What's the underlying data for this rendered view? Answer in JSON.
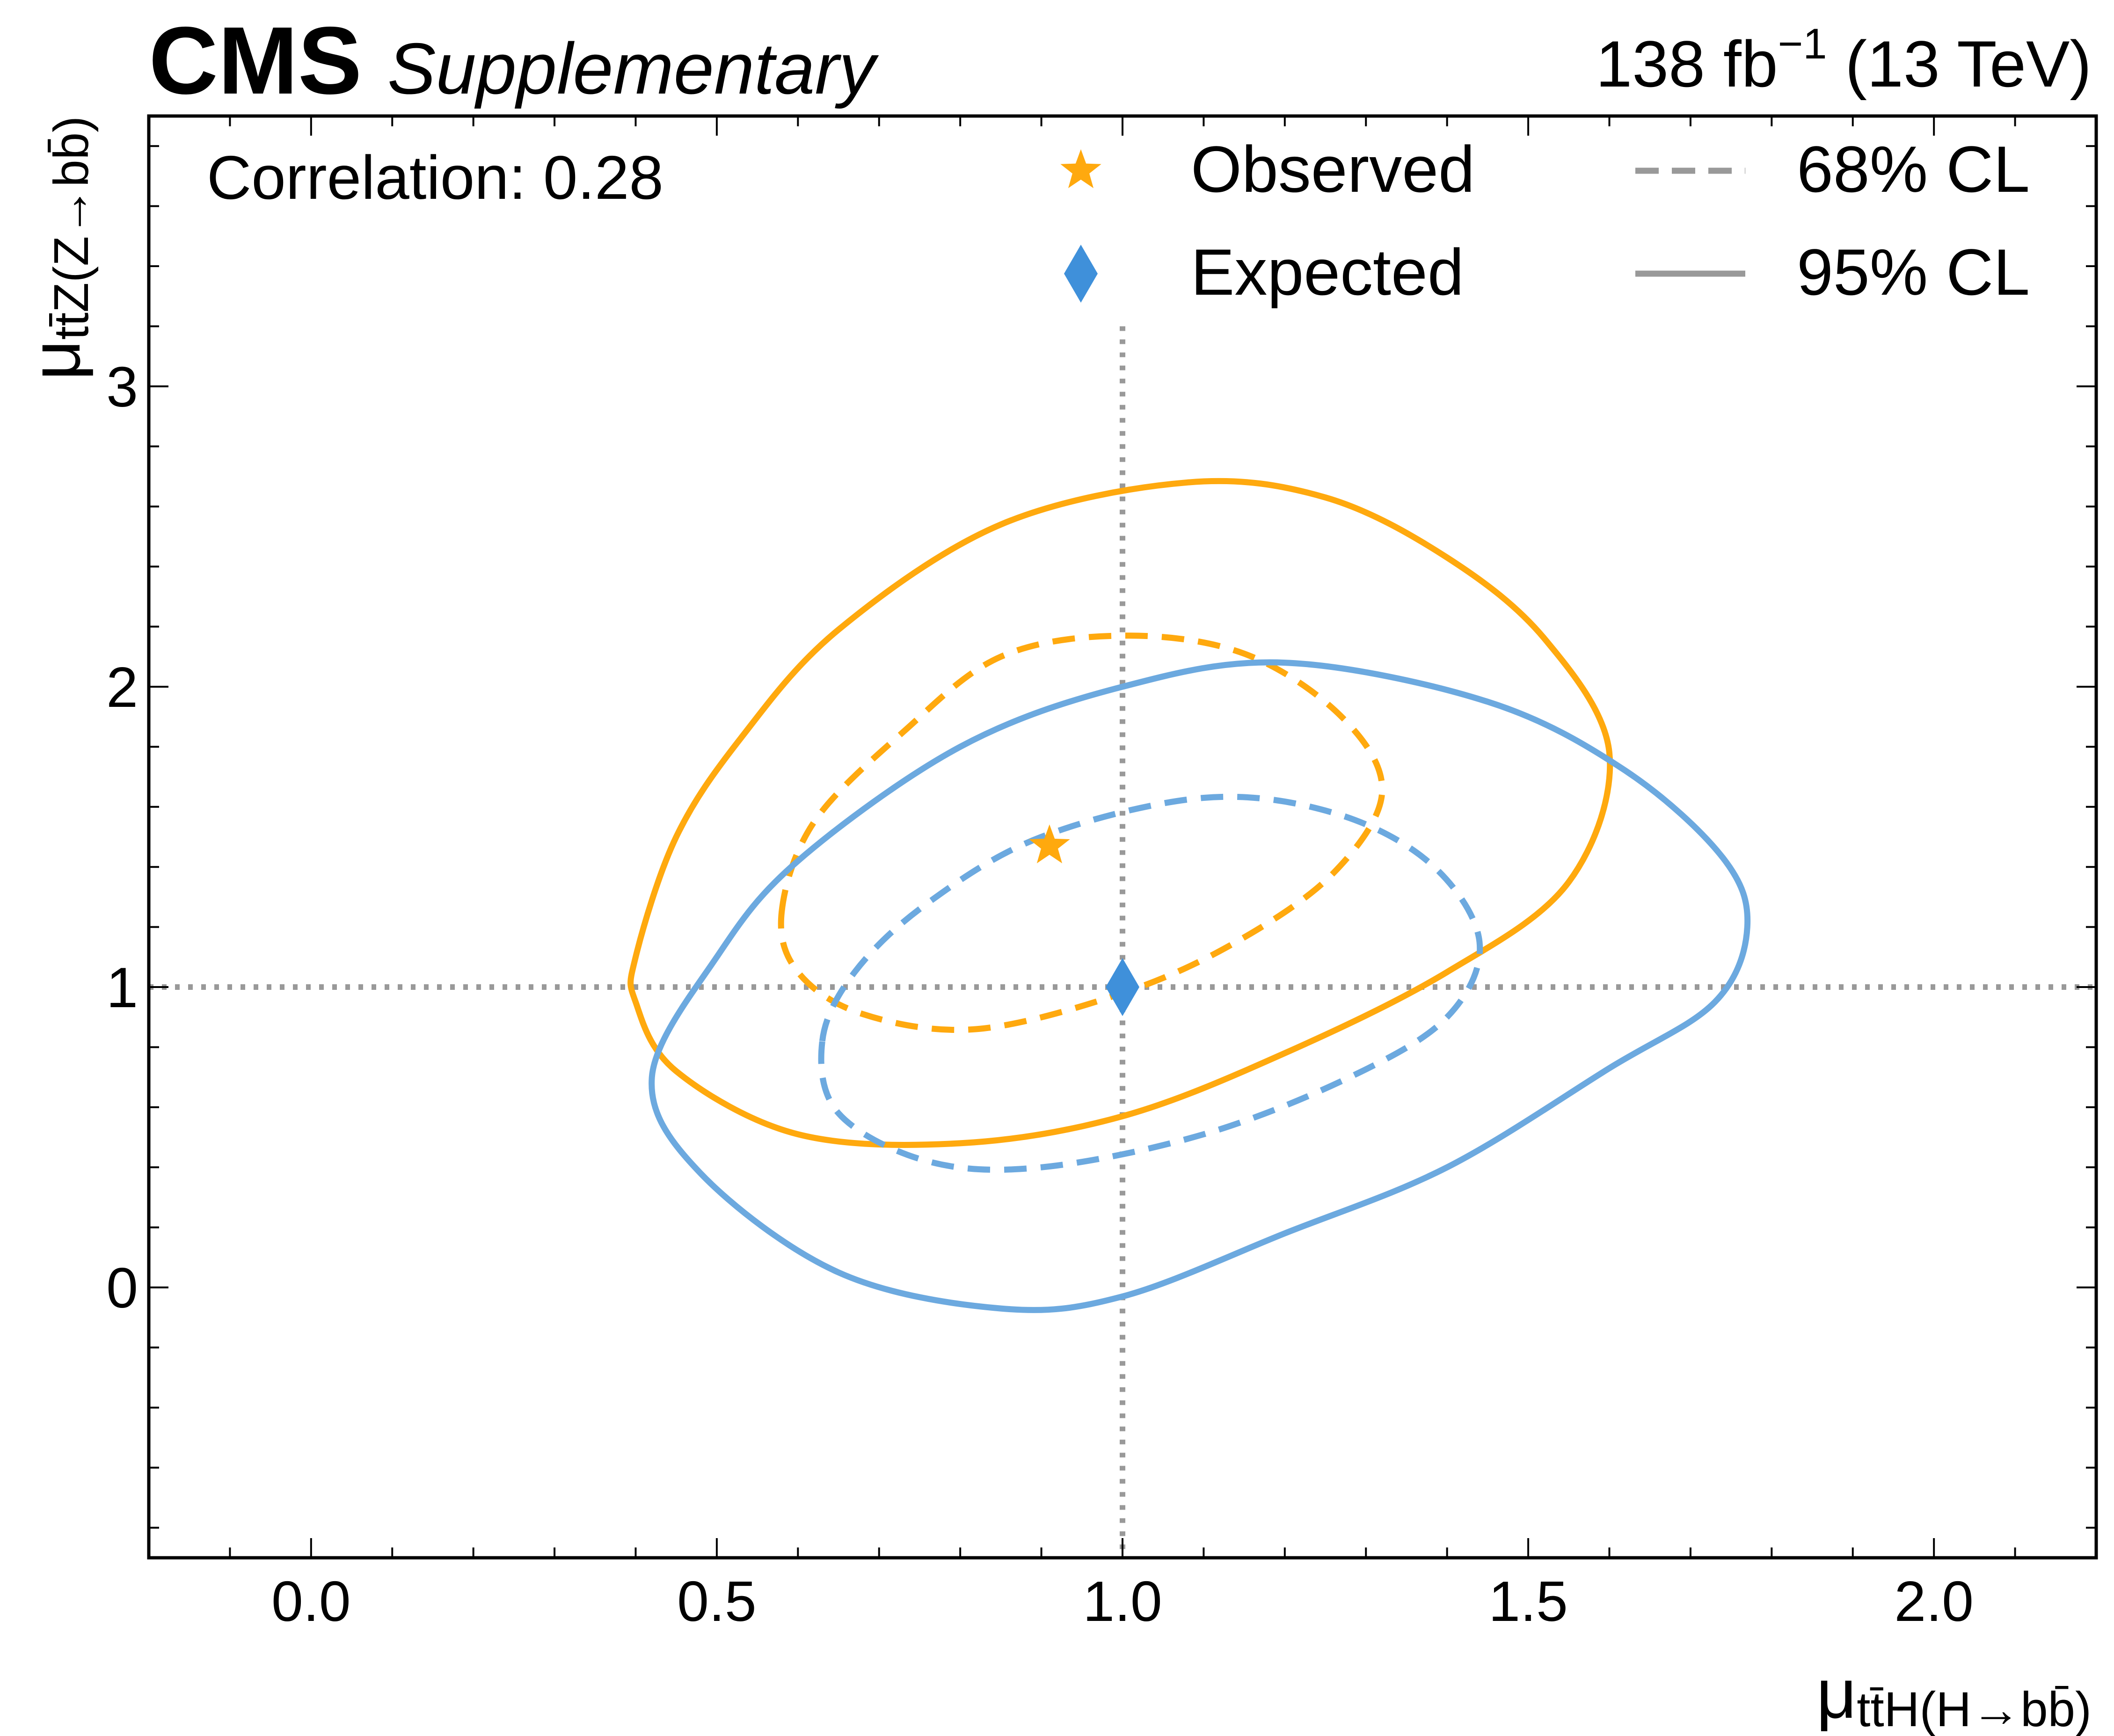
{
  "header": {
    "experiment": "CMS",
    "label": "Supplementary",
    "lumi": "138 fb",
    "lumi_exp": "−1",
    "energy": " (13 TeV)"
  },
  "annotation": "Correlation: 0.28",
  "chart_data": {
    "type": "contour",
    "xlabel": {
      "mu": "μ",
      "sub": "tt̄H(H→bb̄)"
    },
    "ylabel": {
      "mu": "μ",
      "sub": "tt̄Z(Z→bb̄)"
    },
    "xlim": [
      -0.2,
      2.2
    ],
    "ylim": [
      -0.9,
      3.9
    ],
    "xticks": [
      0.0,
      0.5,
      1.0,
      1.5,
      2.0
    ],
    "xtick_labels": [
      "0.0",
      "0.5",
      "1.0",
      "1.5",
      "2.0"
    ],
    "yticks": [
      0,
      1,
      2,
      3
    ],
    "ytick_labels": [
      "0",
      "1",
      "2",
      "3"
    ],
    "x_minor_step": 0.1,
    "y_minor_step": 0.2,
    "reference_lines": {
      "x": 1.0,
      "y": 1.0,
      "color": "#999999",
      "style": "dotted"
    },
    "colors": {
      "observed": "#FFA90E",
      "expected": "#6CA9DF",
      "expected_marker": "#3F90DA",
      "legend_line": "#999999"
    },
    "observed_best_fit": {
      "x": 0.91,
      "y": 1.47,
      "marker": "star"
    },
    "expected_best_fit": {
      "x": 1.0,
      "y": 1.0,
      "marker": "diamond"
    },
    "contours": [
      {
        "name": "observed-95",
        "group": "observed",
        "level": "95% CL",
        "style": "solid",
        "points": [
          [
            0.4,
            1.1
          ],
          [
            0.45,
            1.5
          ],
          [
            0.53,
            1.83
          ],
          [
            0.65,
            2.19
          ],
          [
            0.85,
            2.54
          ],
          [
            1.08,
            2.68
          ],
          [
            1.25,
            2.63
          ],
          [
            1.4,
            2.43
          ],
          [
            1.52,
            2.16
          ],
          [
            1.6,
            1.78
          ],
          [
            1.55,
            1.35
          ],
          [
            1.4,
            1.05
          ],
          [
            1.2,
            0.78
          ],
          [
            1.0,
            0.57
          ],
          [
            0.8,
            0.48
          ],
          [
            0.6,
            0.51
          ],
          [
            0.45,
            0.72
          ],
          [
            0.4,
            0.95
          ]
        ]
      },
      {
        "name": "observed-68",
        "group": "observed",
        "level": "68% CL",
        "style": "dashed",
        "points": [
          [
            0.58,
            1.25
          ],
          [
            0.62,
            1.55
          ],
          [
            0.73,
            1.85
          ],
          [
            0.85,
            2.1
          ],
          [
            1.0,
            2.17
          ],
          [
            1.15,
            2.11
          ],
          [
            1.27,
            1.9
          ],
          [
            1.32,
            1.65
          ],
          [
            1.26,
            1.38
          ],
          [
            1.14,
            1.15
          ],
          [
            1.0,
            0.98
          ],
          [
            0.82,
            0.86
          ],
          [
            0.68,
            0.91
          ],
          [
            0.6,
            1.05
          ]
        ]
      },
      {
        "name": "expected-95",
        "group": "expected",
        "level": "95% CL",
        "style": "solid",
        "points": [
          [
            0.42,
            0.7
          ],
          [
            0.5,
            1.1
          ],
          [
            0.6,
            1.42
          ],
          [
            0.8,
            1.8
          ],
          [
            1.0,
            2.0
          ],
          [
            1.2,
            2.08
          ],
          [
            1.45,
            1.95
          ],
          [
            1.62,
            1.72
          ],
          [
            1.74,
            1.43
          ],
          [
            1.77,
            1.2
          ],
          [
            1.73,
            0.95
          ],
          [
            1.6,
            0.73
          ],
          [
            1.4,
            0.4
          ],
          [
            1.2,
            0.18
          ],
          [
            1.0,
            -0.03
          ],
          [
            0.85,
            -0.07
          ],
          [
            0.65,
            0.05
          ],
          [
            0.48,
            0.38
          ]
        ]
      },
      {
        "name": "expected-68",
        "group": "expected",
        "level": "68% CL",
        "style": "dashed",
        "points": [
          [
            0.63,
            0.82
          ],
          [
            0.67,
            1.05
          ],
          [
            0.76,
            1.28
          ],
          [
            0.9,
            1.5
          ],
          [
            1.1,
            1.63
          ],
          [
            1.26,
            1.58
          ],
          [
            1.38,
            1.41
          ],
          [
            1.44,
            1.15
          ],
          [
            1.4,
            0.9
          ],
          [
            1.28,
            0.7
          ],
          [
            1.1,
            0.51
          ],
          [
            0.9,
            0.4
          ],
          [
            0.76,
            0.42
          ],
          [
            0.65,
            0.58
          ]
        ]
      }
    ],
    "legend": {
      "placement": "top-right",
      "entries": [
        {
          "label": "Observed",
          "symbol": "star",
          "color": "#FFA90E"
        },
        {
          "label": "Expected",
          "symbol": "diamond",
          "color": "#3F90DA"
        },
        {
          "label": "68% CL",
          "symbol": "dashed-line",
          "color": "#999999"
        },
        {
          "label": "95% CL",
          "symbol": "solid-line",
          "color": "#999999"
        }
      ]
    }
  }
}
